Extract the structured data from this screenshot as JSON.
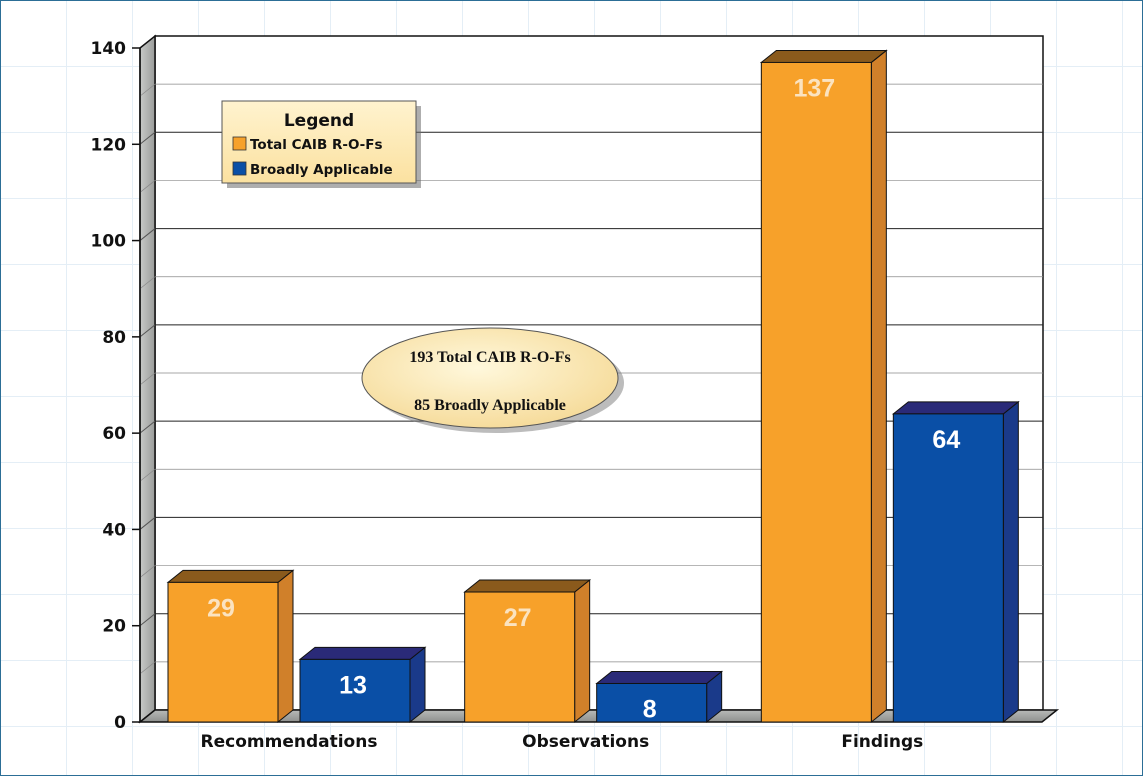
{
  "colors": {
    "total": "#f7a12a",
    "total_side": "#d0802a",
    "total_top": "#8a5a1c",
    "broad": "#0a4fa6",
    "broad_side": "#1a3a8a",
    "broad_top": "#2a2a78",
    "plot_bg": "#ffffff",
    "wall": "#a8aaa8",
    "legend_bg": "#fde9b4",
    "note_bg": "#fcebb8"
  },
  "legend": {
    "title": "Legend",
    "items": [
      {
        "label": "Total CAIB R-O-Fs",
        "color": "#f7a12a"
      },
      {
        "label": "Broadly Applicable",
        "color": "#0a4fa6"
      }
    ]
  },
  "note": {
    "line1": "193 Total CAIB R-O-Fs",
    "line2": "85 Broadly Applicable"
  },
  "chart_data": {
    "type": "bar",
    "categories": [
      "Recommendations",
      "Observations",
      "Findings"
    ],
    "series": [
      {
        "name": "Total CAIB R-O-Fs",
        "values": [
          29,
          27,
          137
        ]
      },
      {
        "name": "Broadly Applicable",
        "values": [
          13,
          8,
          64
        ]
      }
    ],
    "ylim": [
      0,
      140
    ],
    "yticks": [
      0,
      20,
      40,
      60,
      80,
      100,
      120,
      140
    ],
    "grid": true,
    "legend_position": "top-left",
    "title": "",
    "xlabel": "",
    "ylabel": ""
  }
}
